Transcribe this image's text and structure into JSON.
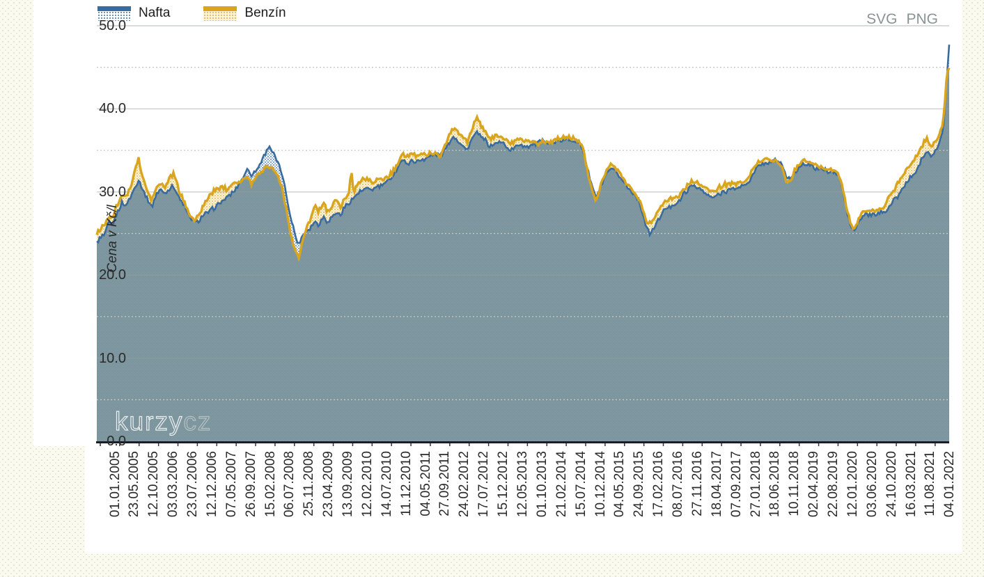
{
  "export_links": {
    "svg_label": "SVG",
    "png_label": "PNG"
  },
  "watermark": {
    "part1": "kurzy",
    "part2": "cz"
  },
  "legend": [
    {
      "label": "Nafta",
      "line_color": "#3A6B9E",
      "fill_style": "blue-dot-pattern"
    },
    {
      "label": "Benzín",
      "line_color": "#D9A51F",
      "fill_style": "gold-dot-pattern"
    }
  ],
  "chart_data": {
    "type": "area",
    "ylabel": "Cena v Kč/l",
    "ylim": [
      0,
      50
    ],
    "ytick_values": [
      0,
      10,
      20,
      30,
      40,
      50
    ],
    "ytick_labels": [
      "0.0",
      "10.0",
      "20.0",
      "30.0",
      "40.0",
      "50.0"
    ],
    "minor_ytick_values": [
      5,
      15,
      25,
      35,
      45
    ],
    "grid": "on",
    "legend_position": "top-left",
    "overlap_fill": "#7B949C",
    "axis_line_color": "#1c1c28",
    "x_tick_labels": [
      "01.01.2005",
      "23.05.2005",
      "12.10.2005",
      "03.03.2006",
      "23.07.2006",
      "12.12.2006",
      "07.05.2007",
      "26.09.2007",
      "15.02.2008",
      "06.07.2008",
      "25.11.2008",
      "23.04.2009",
      "13.09.2009",
      "12.02.2010",
      "14.07.2010",
      "11.12.2010",
      "04.05.2011",
      "27.09.2011",
      "24.02.2012",
      "17.07.2012",
      "15.12.2012",
      "12.05.2013",
      "01.10.2013",
      "21.02.2014",
      "15.07.2014",
      "10.12.2014",
      "04.05.2015",
      "24.09.2015",
      "17.02.2016",
      "08.07.2016",
      "27.11.2016",
      "18.04.2017",
      "07.09.2017",
      "27.01.2018",
      "18.06.2018",
      "10.11.2018",
      "02.04.2019",
      "22.08.2019",
      "12.01.2020",
      "03.06.2020",
      "24.10.2020",
      "16.03.2021",
      "11.08.2021",
      "04.01.2022"
    ],
    "series_names": [
      "Nafta",
      "Benzín"
    ],
    "anchors_format": [
      "year_decimal",
      "nafta_kc_per_l",
      "benzin_kc_per_l"
    ],
    "anchors": [
      [
        2004.93,
        24.0,
        25.0
      ],
      [
        2005.1,
        25.0,
        26.3
      ],
      [
        2005.17,
        26.3,
        27.2
      ],
      [
        2005.25,
        26.0,
        26.8
      ],
      [
        2005.35,
        27.5,
        28.5
      ],
      [
        2005.45,
        28.8,
        29.8
      ],
      [
        2005.5,
        28.3,
        29.2
      ],
      [
        2005.6,
        29.2,
        30.2
      ],
      [
        2005.7,
        30.5,
        32.5
      ],
      [
        2005.78,
        31.5,
        34.0
      ],
      [
        2005.85,
        30.5,
        32.0
      ],
      [
        2005.95,
        29.3,
        30.2
      ],
      [
        2006.05,
        28.2,
        29.0
      ],
      [
        2006.15,
        29.8,
        30.6
      ],
      [
        2006.25,
        30.3,
        31.0
      ],
      [
        2006.33,
        29.8,
        30.5
      ],
      [
        2006.42,
        30.5,
        31.8
      ],
      [
        2006.5,
        30.7,
        32.3
      ],
      [
        2006.6,
        29.3,
        30.2
      ],
      [
        2006.7,
        28.5,
        29.0
      ],
      [
        2006.8,
        27.2,
        27.6
      ],
      [
        2006.92,
        26.3,
        26.6
      ],
      [
        2007.0,
        26.5,
        27.0
      ],
      [
        2007.1,
        27.2,
        28.3
      ],
      [
        2007.2,
        27.6,
        29.3
      ],
      [
        2007.3,
        28.0,
        30.0
      ],
      [
        2007.42,
        28.5,
        30.5
      ],
      [
        2007.5,
        29.0,
        30.6
      ],
      [
        2007.58,
        29.3,
        30.3
      ],
      [
        2007.68,
        29.8,
        31.0
      ],
      [
        2007.75,
        30.3,
        31.2
      ],
      [
        2007.83,
        31.0,
        31.2
      ],
      [
        2007.92,
        31.8,
        31.5
      ],
      [
        2008.0,
        32.8,
        31.8
      ],
      [
        2008.08,
        32.0,
        31.0
      ],
      [
        2008.17,
        32.5,
        31.8
      ],
      [
        2008.25,
        33.2,
        32.3
      ],
      [
        2008.33,
        34.3,
        32.8
      ],
      [
        2008.45,
        35.6,
        33.2
      ],
      [
        2008.52,
        34.8,
        32.8
      ],
      [
        2008.6,
        33.8,
        32.3
      ],
      [
        2008.7,
        32.3,
        30.8
      ],
      [
        2008.8,
        29.5,
        27.8
      ],
      [
        2008.9,
        26.5,
        24.5
      ],
      [
        2009.0,
        24.3,
        22.5
      ],
      [
        2009.05,
        23.6,
        22.1
      ],
      [
        2009.12,
        24.8,
        24.0
      ],
      [
        2009.2,
        25.3,
        25.5
      ],
      [
        2009.3,
        25.8,
        27.0
      ],
      [
        2009.38,
        26.5,
        28.8
      ],
      [
        2009.45,
        26.0,
        27.5
      ],
      [
        2009.55,
        27.0,
        28.8
      ],
      [
        2009.62,
        26.5,
        27.8
      ],
      [
        2009.7,
        26.8,
        28.0
      ],
      [
        2009.8,
        27.5,
        29.0
      ],
      [
        2009.9,
        27.3,
        28.3
      ],
      [
        2010.0,
        28.3,
        29.3
      ],
      [
        2010.08,
        28.8,
        29.8
      ],
      [
        2010.12,
        29.0,
        33.0
      ],
      [
        2010.16,
        29.2,
        30.0
      ],
      [
        2010.25,
        29.8,
        31.0
      ],
      [
        2010.35,
        30.2,
        31.5
      ],
      [
        2010.45,
        30.4,
        31.5
      ],
      [
        2010.55,
        30.3,
        31.2
      ],
      [
        2010.65,
        30.6,
        31.4
      ],
      [
        2010.75,
        30.8,
        31.5
      ],
      [
        2010.85,
        31.2,
        31.8
      ],
      [
        2010.95,
        31.8,
        32.3
      ],
      [
        2011.05,
        32.8,
        33.3
      ],
      [
        2011.15,
        33.8,
        34.6
      ],
      [
        2011.25,
        33.4,
        34.2
      ],
      [
        2011.35,
        33.8,
        34.5
      ],
      [
        2011.45,
        33.6,
        34.3
      ],
      [
        2011.55,
        33.9,
        34.6
      ],
      [
        2011.65,
        34.1,
        34.5
      ],
      [
        2011.75,
        34.3,
        34.7
      ],
      [
        2011.85,
        34.5,
        34.6
      ],
      [
        2011.95,
        34.4,
        34.2
      ],
      [
        2012.05,
        35.3,
        35.8
      ],
      [
        2012.15,
        36.3,
        37.3
      ],
      [
        2012.22,
        36.6,
        37.7
      ],
      [
        2012.3,
        36.2,
        37.2
      ],
      [
        2012.4,
        35.5,
        36.5
      ],
      [
        2012.48,
        35.0,
        36.0
      ],
      [
        2012.55,
        36.0,
        37.2
      ],
      [
        2012.63,
        36.8,
        38.2
      ],
      [
        2012.7,
        37.2,
        38.9
      ],
      [
        2012.78,
        36.5,
        37.8
      ],
      [
        2012.85,
        36.2,
        37.2
      ],
      [
        2012.95,
        35.5,
        36.3
      ],
      [
        2013.05,
        35.8,
        36.7
      ],
      [
        2013.15,
        36.0,
        36.8
      ],
      [
        2013.25,
        35.7,
        36.4
      ],
      [
        2013.35,
        35.0,
        35.8
      ],
      [
        2013.45,
        35.3,
        36.0
      ],
      [
        2013.55,
        35.8,
        36.5
      ],
      [
        2013.65,
        35.5,
        36.2
      ],
      [
        2013.75,
        35.6,
        36.1
      ],
      [
        2013.85,
        35.8,
        36.0
      ],
      [
        2013.95,
        35.9,
        35.9
      ],
      [
        2014.05,
        36.3,
        36.1
      ],
      [
        2014.15,
        35.9,
        36.0
      ],
      [
        2014.25,
        35.9,
        36.2
      ],
      [
        2014.35,
        36.1,
        36.4
      ],
      [
        2014.45,
        36.2,
        36.5
      ],
      [
        2014.55,
        36.4,
        36.6
      ],
      [
        2014.65,
        36.3,
        36.5
      ],
      [
        2014.75,
        36.0,
        36.2
      ],
      [
        2014.85,
        35.0,
        35.2
      ],
      [
        2014.95,
        32.5,
        32.3
      ],
      [
        2015.05,
        30.3,
        29.8
      ],
      [
        2015.12,
        29.2,
        29.0
      ],
      [
        2015.2,
        30.5,
        30.8
      ],
      [
        2015.3,
        31.8,
        32.2
      ],
      [
        2015.4,
        32.8,
        33.3
      ],
      [
        2015.5,
        32.4,
        32.9
      ],
      [
        2015.6,
        31.8,
        32.3
      ],
      [
        2015.7,
        31.0,
        31.4
      ],
      [
        2015.8,
        30.2,
        30.5
      ],
      [
        2015.9,
        29.8,
        30.0
      ],
      [
        2016.0,
        28.7,
        28.9
      ],
      [
        2016.08,
        27.2,
        27.6
      ],
      [
        2016.15,
        25.5,
        26.5
      ],
      [
        2016.22,
        24.8,
        26.2
      ],
      [
        2016.3,
        25.8,
        27.0
      ],
      [
        2016.4,
        26.8,
        28.0
      ],
      [
        2016.5,
        27.8,
        28.9
      ],
      [
        2016.6,
        28.2,
        29.2
      ],
      [
        2016.7,
        28.5,
        29.2
      ],
      [
        2016.8,
        28.8,
        29.4
      ],
      [
        2016.9,
        29.8,
        30.4
      ],
      [
        2017.0,
        30.4,
        30.9
      ],
      [
        2017.1,
        30.8,
        31.3
      ],
      [
        2017.2,
        30.5,
        31.1
      ],
      [
        2017.3,
        30.0,
        30.6
      ],
      [
        2017.4,
        29.5,
        30.2
      ],
      [
        2017.5,
        29.3,
        30.0
      ],
      [
        2017.6,
        29.6,
        30.4
      ],
      [
        2017.7,
        30.0,
        30.8
      ],
      [
        2017.8,
        30.2,
        31.0
      ],
      [
        2017.9,
        30.4,
        31.0
      ],
      [
        2018.0,
        30.5,
        31.0
      ],
      [
        2018.1,
        30.7,
        31.2
      ],
      [
        2018.2,
        31.1,
        31.7
      ],
      [
        2018.3,
        31.9,
        32.6
      ],
      [
        2018.4,
        32.9,
        33.5
      ],
      [
        2018.5,
        33.4,
        33.9
      ],
      [
        2018.6,
        33.5,
        34.0
      ],
      [
        2018.7,
        33.7,
        33.9
      ],
      [
        2018.8,
        33.8,
        33.7
      ],
      [
        2018.9,
        33.4,
        33.0
      ],
      [
        2019.0,
        31.8,
        31.3
      ],
      [
        2019.08,
        31.4,
        31.2
      ],
      [
        2019.15,
        32.2,
        32.4
      ],
      [
        2019.25,
        33.0,
        33.4
      ],
      [
        2019.35,
        33.5,
        33.8
      ],
      [
        2019.45,
        33.3,
        33.6
      ],
      [
        2019.55,
        33.0,
        33.3
      ],
      [
        2019.65,
        32.8,
        33.1
      ],
      [
        2019.75,
        32.7,
        32.9
      ],
      [
        2019.85,
        32.5,
        32.8
      ],
      [
        2019.95,
        32.4,
        32.6
      ],
      [
        2020.05,
        32.0,
        32.2
      ],
      [
        2020.12,
        31.0,
        31.2
      ],
      [
        2020.2,
        28.5,
        28.8
      ],
      [
        2020.3,
        26.0,
        26.3
      ],
      [
        2020.38,
        25.2,
        25.4
      ],
      [
        2020.48,
        26.5,
        27.0
      ],
      [
        2020.58,
        27.2,
        27.7
      ],
      [
        2020.68,
        27.3,
        27.8
      ],
      [
        2020.78,
        27.2,
        27.7
      ],
      [
        2020.88,
        27.4,
        27.9
      ],
      [
        2020.98,
        27.6,
        28.2
      ],
      [
        2021.08,
        28.2,
        29.2
      ],
      [
        2021.18,
        28.9,
        30.2
      ],
      [
        2021.28,
        29.6,
        31.2
      ],
      [
        2021.38,
        30.6,
        32.2
      ],
      [
        2021.48,
        31.4,
        33.0
      ],
      [
        2021.58,
        32.0,
        33.6
      ],
      [
        2021.68,
        33.0,
        34.6
      ],
      [
        2021.78,
        34.3,
        35.8
      ],
      [
        2021.86,
        35.0,
        36.4
      ],
      [
        2021.94,
        34.4,
        35.6
      ],
      [
        2022.02,
        34.8,
        35.9
      ],
      [
        2022.1,
        35.6,
        36.6
      ],
      [
        2022.16,
        36.6,
        37.6
      ],
      [
        2022.21,
        38.5,
        39.3
      ],
      [
        2022.26,
        43.0,
        43.5
      ],
      [
        2022.31,
        47.6,
        44.9
      ]
    ]
  }
}
